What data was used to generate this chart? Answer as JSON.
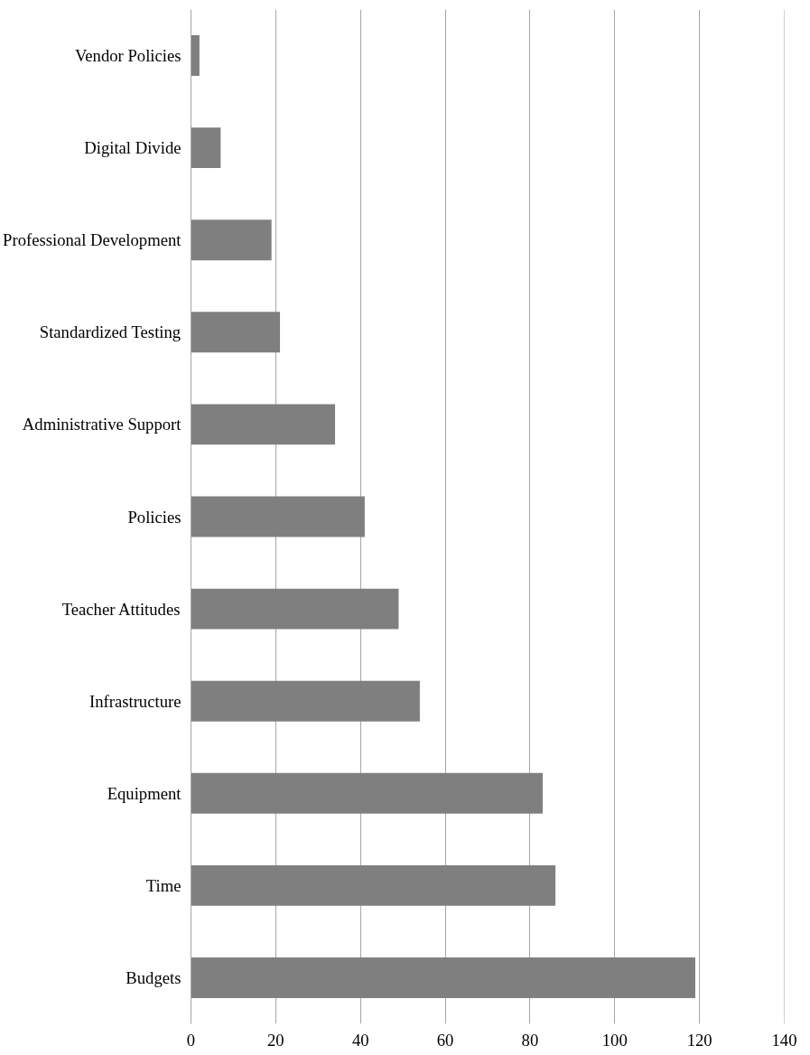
{
  "chart_data": {
    "type": "bar",
    "orientation": "horizontal",
    "categories": [
      "Vendor Policies",
      "Digital Divide",
      "Professional Development",
      "Standardized Testing",
      "Administrative Support",
      "Policies",
      "Teacher Attitudes",
      "Infrastructure",
      "Equipment",
      "Time",
      "Budgets"
    ],
    "values": [
      2,
      7,
      19,
      21,
      34,
      41,
      49,
      54,
      83,
      86,
      119
    ],
    "color": "#7f7f7f",
    "xlim": [
      0,
      140
    ],
    "xticks": [
      0,
      20,
      40,
      60,
      80,
      100,
      120,
      140
    ],
    "grid": "x"
  }
}
